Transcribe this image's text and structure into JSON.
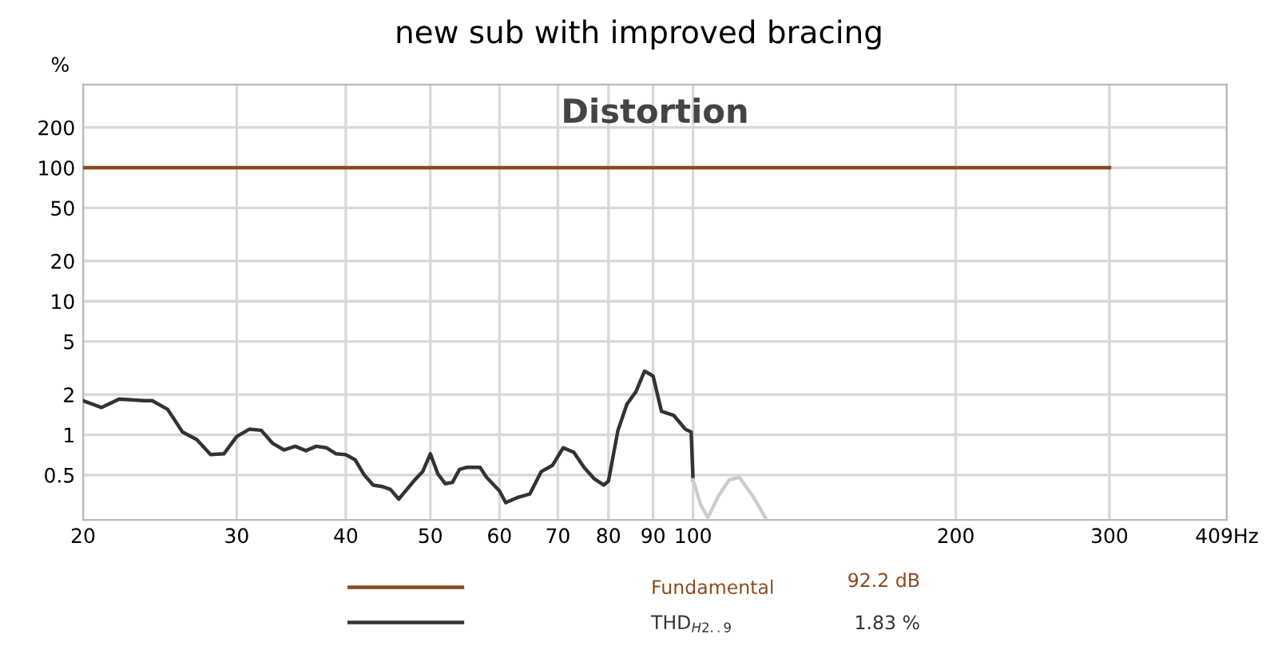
{
  "chart_data": {
    "type": "line",
    "title": "new sub with improved bracing",
    "subtitle": "Distortion",
    "ylabel": "%",
    "log": "xy",
    "grid": true,
    "legend": "bottom",
    "marker": "none",
    "line_style": "solid",
    "xlim": [
      20,
      409
    ],
    "xticks": [
      20,
      30,
      40,
      50,
      60,
      70,
      80,
      90,
      100,
      200,
      300,
      {
        "value": 409,
        "label": "409Hz"
      }
    ],
    "ylim": [
      0.23,
      420
    ],
    "yticks": [
      0.5,
      1,
      2,
      5,
      10,
      20,
      50,
      100,
      200
    ],
    "series": [
      {
        "name": "Fundamental",
        "color": "#8b4a1c",
        "x": [
          20,
          300
        ],
        "values": [
          100,
          100
        ]
      },
      {
        "name": "THD$_{H2..9}$",
        "color": "#333333",
        "x": [
          20,
          21,
          22,
          23.5,
          24,
          25,
          26,
          27,
          28,
          29,
          30,
          31,
          32,
          33,
          34,
          35,
          36,
          37,
          38,
          39,
          40,
          41,
          42,
          43,
          44,
          45,
          46,
          47,
          48,
          49,
          50,
          51,
          52,
          53,
          54,
          55,
          57,
          58,
          60,
          61,
          63,
          65,
          67,
          69,
          71,
          73,
          75,
          77,
          79,
          80,
          82,
          84,
          86,
          88,
          90,
          92,
          95,
          98,
          99.5,
          100
        ],
        "values": [
          1.8,
          1.6,
          1.85,
          1.8,
          1.8,
          1.55,
          1.05,
          0.92,
          0.71,
          0.72,
          0.97,
          1.1,
          1.08,
          0.86,
          0.77,
          0.82,
          0.76,
          0.82,
          0.8,
          0.72,
          0.71,
          0.65,
          0.5,
          0.42,
          0.41,
          0.39,
          0.33,
          0.39,
          0.46,
          0.53,
          0.72,
          0.51,
          0.43,
          0.44,
          0.55,
          0.57,
          0.57,
          0.48,
          0.38,
          0.31,
          0.34,
          0.36,
          0.53,
          0.59,
          0.8,
          0.74,
          0.57,
          0.47,
          0.42,
          0.45,
          1.07,
          1.7,
          2.1,
          3.0,
          2.75,
          1.5,
          1.4,
          1.1,
          1.05,
          0.46
        ]
      },
      {
        "color": "#cccccc",
        "x": [
          100,
          102,
          104,
          107,
          110,
          113,
          117,
          121
        ],
        "values": [
          0.46,
          0.3,
          0.24,
          0.35,
          0.46,
          0.48,
          0.35,
          0.24
        ]
      }
    ],
    "annotations": [
      "92.2 dB",
      "1.83 %"
    ]
  }
}
